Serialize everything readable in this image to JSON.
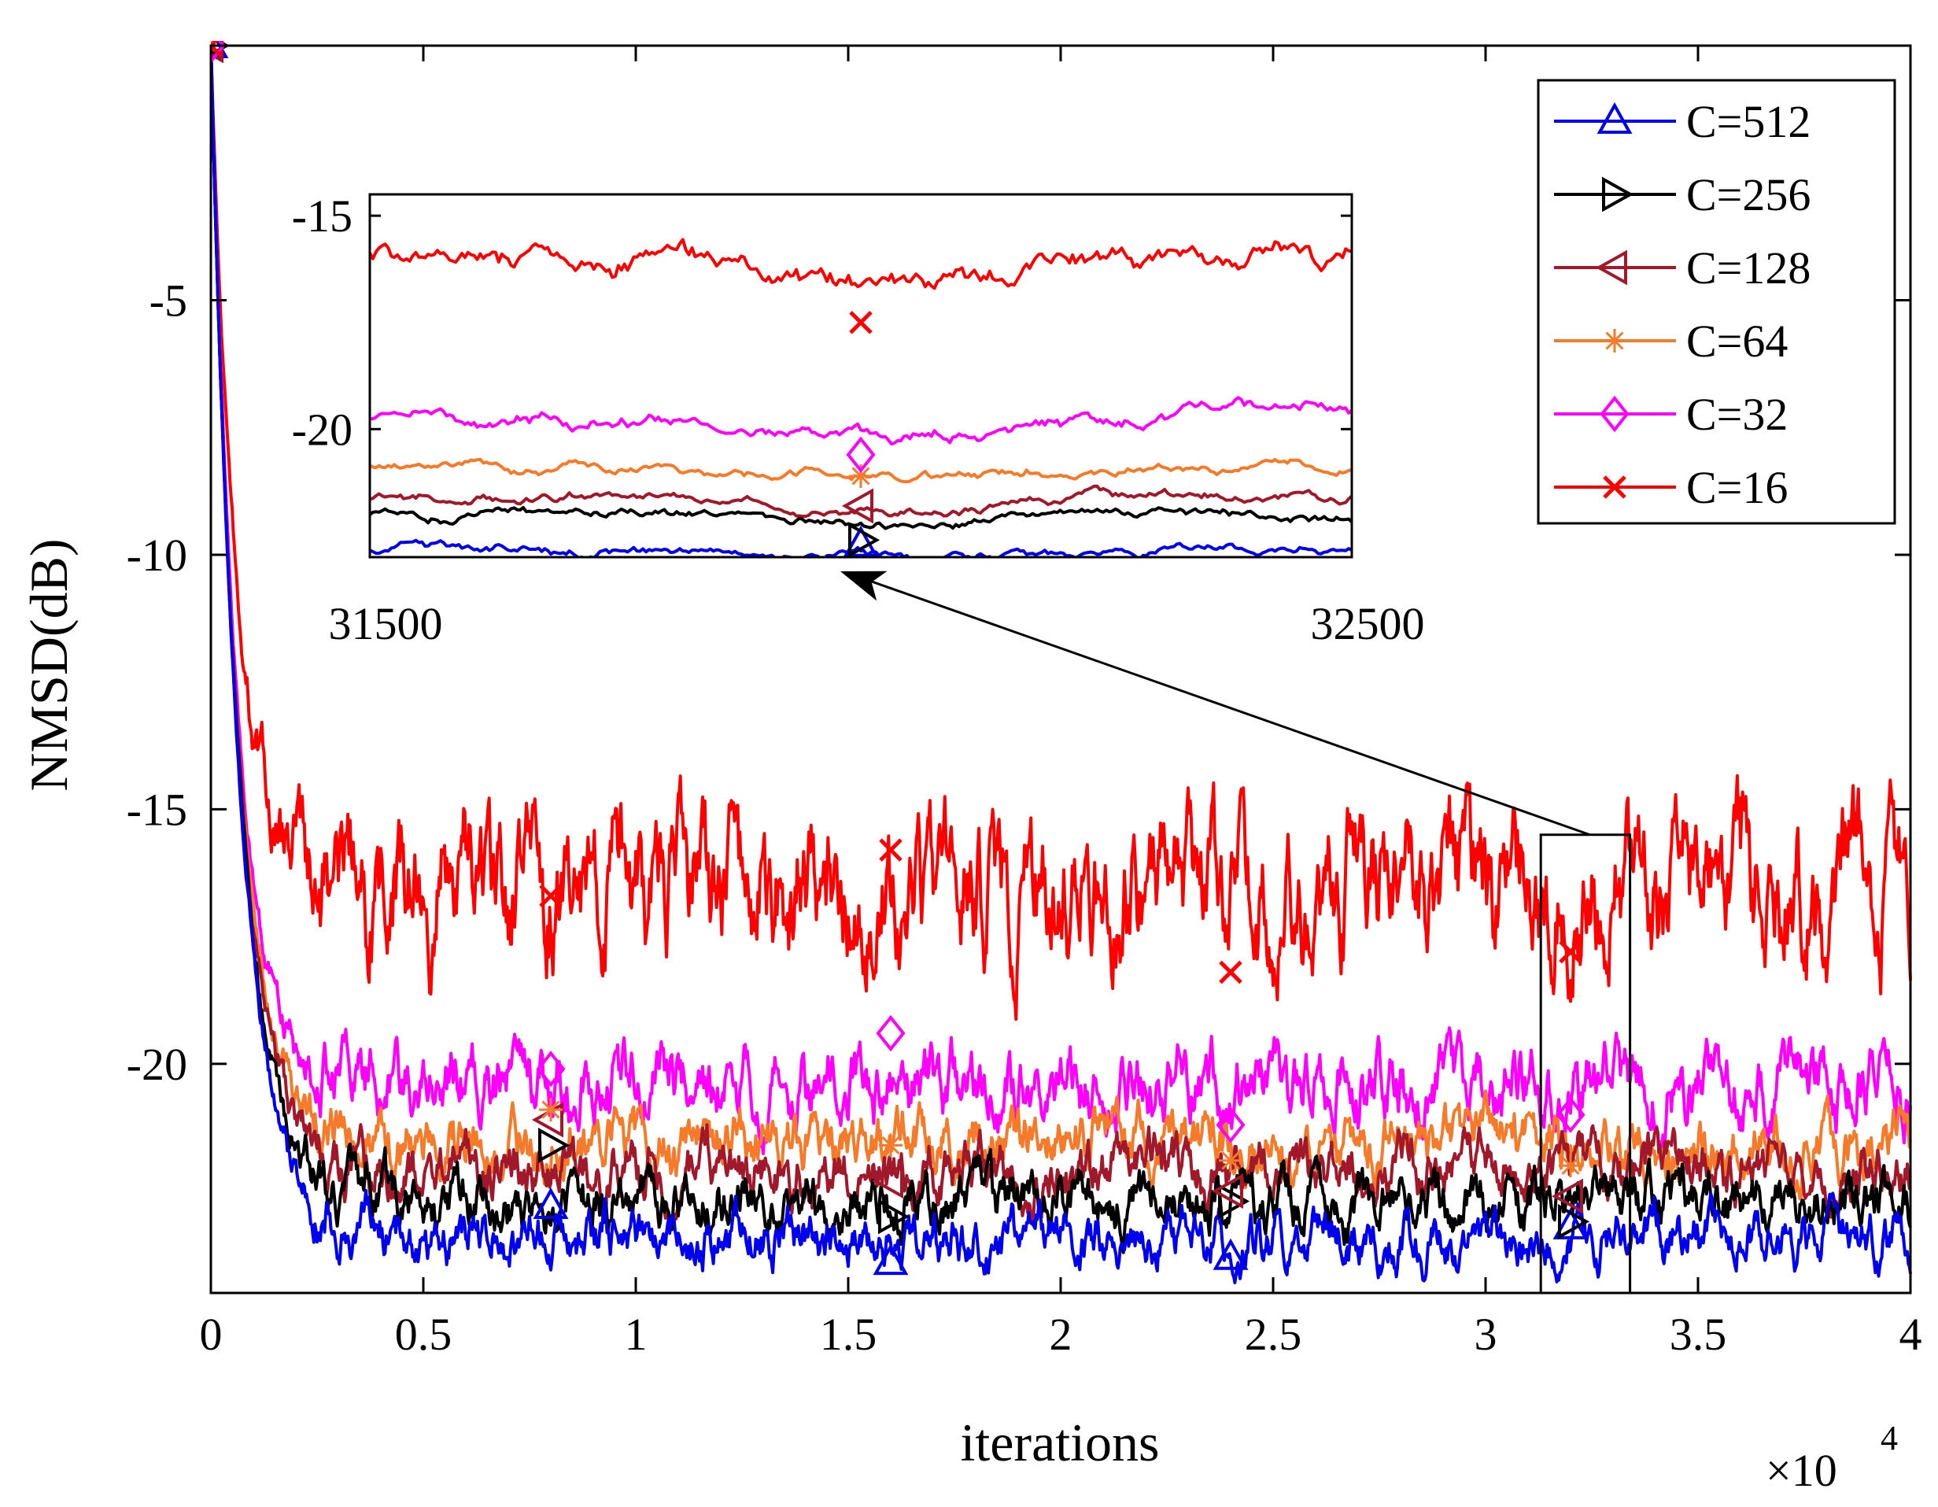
{
  "chart_data": {
    "type": "line",
    "title": "",
    "xlabel": "iterations",
    "ylabel": "NMSD(dB)",
    "x_exponent_base": "×10",
    "x_exponent_power": "4",
    "xlim": [
      0,
      40000
    ],
    "ylim": [
      -24.5,
      0
    ],
    "x_ticks": [
      0,
      5000,
      10000,
      15000,
      20000,
      25000,
      30000,
      35000,
      40000
    ],
    "x_tick_labels": [
      "0",
      "0.5",
      "1",
      "1.5",
      "2",
      "2.5",
      "3",
      "3.5",
      "4"
    ],
    "y_ticks": [
      -5,
      -10,
      -15,
      -20
    ],
    "y_tick_labels": [
      "-5",
      "-10",
      "-15",
      "-20"
    ],
    "legend_position": "top-right",
    "series": [
      {
        "name": "C=512",
        "color": "#0000ee",
        "marker": "triangle-up",
        "initial": 0,
        "steady_state": -23.4,
        "time_constant": 700,
        "noise": 0.28
      },
      {
        "name": "C=256",
        "color": "#000000",
        "marker": "triangle-right",
        "initial": 0,
        "steady_state": -22.7,
        "time_constant": 680,
        "noise": 0.3
      },
      {
        "name": "C=128",
        "color": "#a0182a",
        "marker": "triangle-left",
        "initial": 0,
        "steady_state": -22.1,
        "time_constant": 660,
        "noise": 0.3
      },
      {
        "name": "C=64",
        "color": "#f57a2a",
        "marker": "asterisk",
        "initial": 0,
        "steady_state": -21.5,
        "time_constant": 640,
        "noise": 0.32
      },
      {
        "name": "C=32",
        "color": "#ff00ff",
        "marker": "diamond",
        "initial": 0,
        "steady_state": -20.4,
        "time_constant": 620,
        "noise": 0.38
      },
      {
        "name": "C=16",
        "color": "#ff0000",
        "marker": "x",
        "initial": 0,
        "steady_state": -16.5,
        "time_constant": 600,
        "noise": 0.75
      }
    ],
    "marker_x": [
      0,
      8000,
      16000,
      24000,
      32000
    ],
    "marker_y": {
      "C=512": [
        0,
        -22.8,
        -23.9,
        -23.8,
        -23.2
      ],
      "C=256": [
        0,
        -21.6,
        -23.0,
        -22.7,
        -23.1
      ],
      "C=128": [
        0,
        -21.1,
        -22.3,
        -22.5,
        -22.6
      ],
      "C=64": [
        0,
        -20.9,
        -21.6,
        -21.9,
        -22.0
      ],
      "C=32": [
        0,
        -20.1,
        -19.4,
        -21.2,
        -21.0
      ],
      "C=16": [
        0,
        -16.7,
        -15.8,
        -18.2,
        -17.8
      ]
    },
    "zoom_box": {
      "xlim": [
        31300,
        33400
      ],
      "ylim": [
        -24.5,
        -15.5
      ]
    },
    "inset": {
      "xlim": [
        31500,
        32500
      ],
      "ylim": [
        -23.0,
        -14.5
      ],
      "x_ticks": [
        31500,
        32500
      ],
      "x_tick_labels": [
        "31500",
        "32500"
      ],
      "y_ticks": [
        -15,
        -20
      ],
      "y_tick_labels": [
        "-15",
        "-20"
      ],
      "marker_x": 32000,
      "levels": {
        "C=512": -22.8,
        "C=256": -22.0,
        "C=128": -21.6,
        "C=64": -20.9,
        "C=32": -19.7,
        "C=16": -16.0
      },
      "marker_y": {
        "C=512": -22.7,
        "C=256": -22.6,
        "C=128": -21.8,
        "C=64": -21.1,
        "C=32": -20.6,
        "C=16": -17.5
      }
    }
  }
}
